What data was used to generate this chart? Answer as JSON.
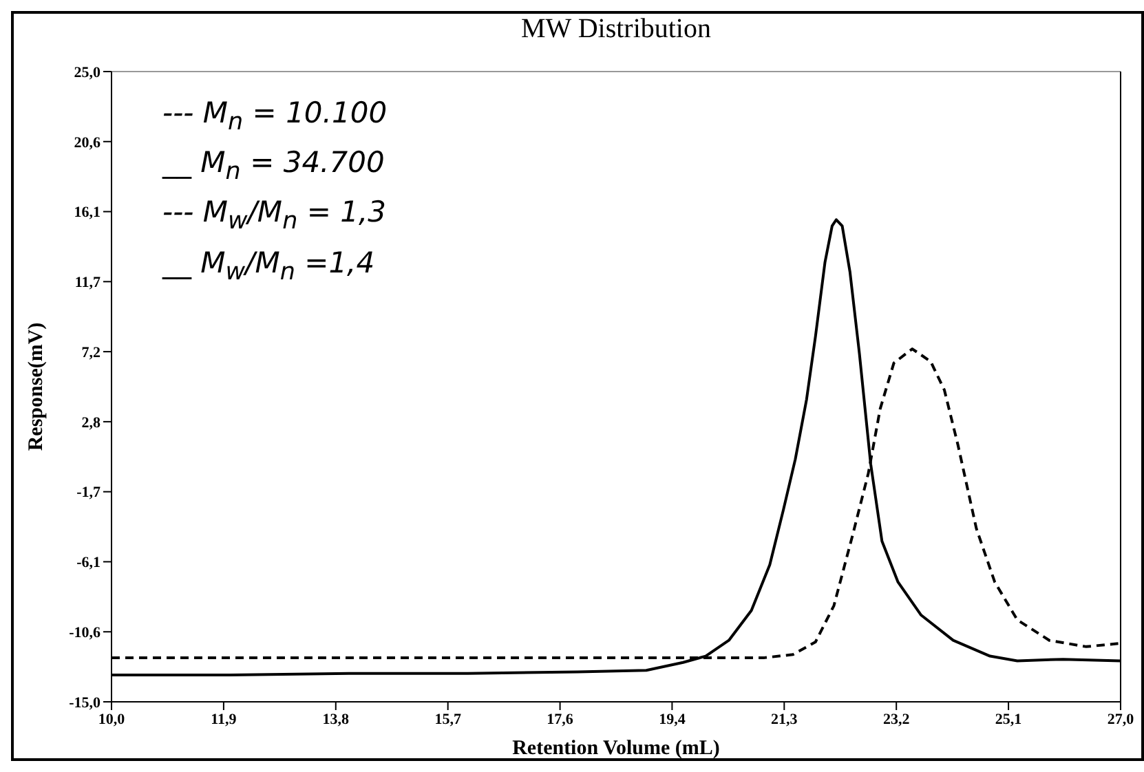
{
  "chart_data": {
    "type": "line",
    "title": "MW Distribution",
    "xlabel": "Retention Volume (mL)",
    "ylabel": "Response(mV)",
    "xlim": [
      10,
      27
    ],
    "ylim": [
      -15,
      25
    ],
    "xticks": [
      {
        "value": 10,
        "label": "10,0"
      },
      {
        "value": 11.889,
        "label": "11,9"
      },
      {
        "value": 13.778,
        "label": "13,8"
      },
      {
        "value": 15.667,
        "label": "15,7"
      },
      {
        "value": 17.556,
        "label": "17,6"
      },
      {
        "value": 19.444,
        "label": "19,4"
      },
      {
        "value": 21.333,
        "label": "21,3"
      },
      {
        "value": 23.222,
        "label": "23,2"
      },
      {
        "value": 25.111,
        "label": "25,1"
      },
      {
        "value": 27,
        "label": "27,0"
      }
    ],
    "yticks": [
      {
        "value": -15,
        "label": "-15,0"
      },
      {
        "value": -10.556,
        "label": "-10,6"
      },
      {
        "value": -6.111,
        "label": "-6,1"
      },
      {
        "value": -1.667,
        "label": "-1,7"
      },
      {
        "value": 2.778,
        "label": "2,8"
      },
      {
        "value": 7.222,
        "label": "7,2"
      },
      {
        "value": 11.667,
        "label": "11,7"
      },
      {
        "value": 16.111,
        "label": "16,1"
      },
      {
        "value": 20.556,
        "label": "20,6"
      },
      {
        "value": 25,
        "label": "25,0"
      }
    ],
    "grid": false,
    "legend": false,
    "marker": "none",
    "annotations": [
      "--- M$_{n}$ = 10.100",
      "__ M$_{n}$ = 34.700",
      "--- M$_{w}$/M$_{n}$ = 1,3",
      "__ M$_{w}$/M$_{n}$ =1,4"
    ],
    "series": [
      {
        "color": "#000000",
        "line_style": "dashed",
        "x": [
          10,
          12,
          14,
          16,
          18,
          20,
          21,
          21.48,
          21.86,
          22.17,
          22.48,
          22.75,
          22.95,
          23.18,
          23.49,
          23.8,
          24.03,
          24.26,
          24.57,
          24.88,
          25.26,
          25.8,
          26.42,
          26.96
        ],
        "values": [
          -12.2,
          -12.2,
          -12.2,
          -12.2,
          -12.2,
          -12.2,
          -12.2,
          -12.0,
          -11.2,
          -8.9,
          -4.5,
          -0.5,
          3.6,
          6.5,
          7.4,
          6.6,
          4.8,
          1.3,
          -4.0,
          -7.4,
          -9.8,
          -11.1,
          -11.5,
          -11.3
        ]
      },
      {
        "color": "#000000",
        "line_style": "solid",
        "x": [
          10,
          12,
          14,
          16,
          17.85,
          19.01,
          19.63,
          20.01,
          20.4,
          20.78,
          21.09,
          21.32,
          21.52,
          21.71,
          21.86,
          22.02,
          22.14,
          22.21,
          22.31,
          22.44,
          22.6,
          22.79,
          22.98,
          23.25,
          23.64,
          24.18,
          24.8,
          25.26,
          26.03,
          27
        ],
        "values": [
          -13.3,
          -13.3,
          -13.2,
          -13.2,
          -13.1,
          -13.0,
          -12.5,
          -12.1,
          -11.1,
          -9.2,
          -6.3,
          -2.8,
          0.4,
          4.2,
          8.2,
          12.9,
          15.2,
          15.6,
          15.2,
          12.3,
          7.1,
          0.1,
          -4.8,
          -7.4,
          -9.5,
          -11.1,
          -12.1,
          -12.4,
          -12.3,
          -12.4
        ]
      }
    ]
  }
}
